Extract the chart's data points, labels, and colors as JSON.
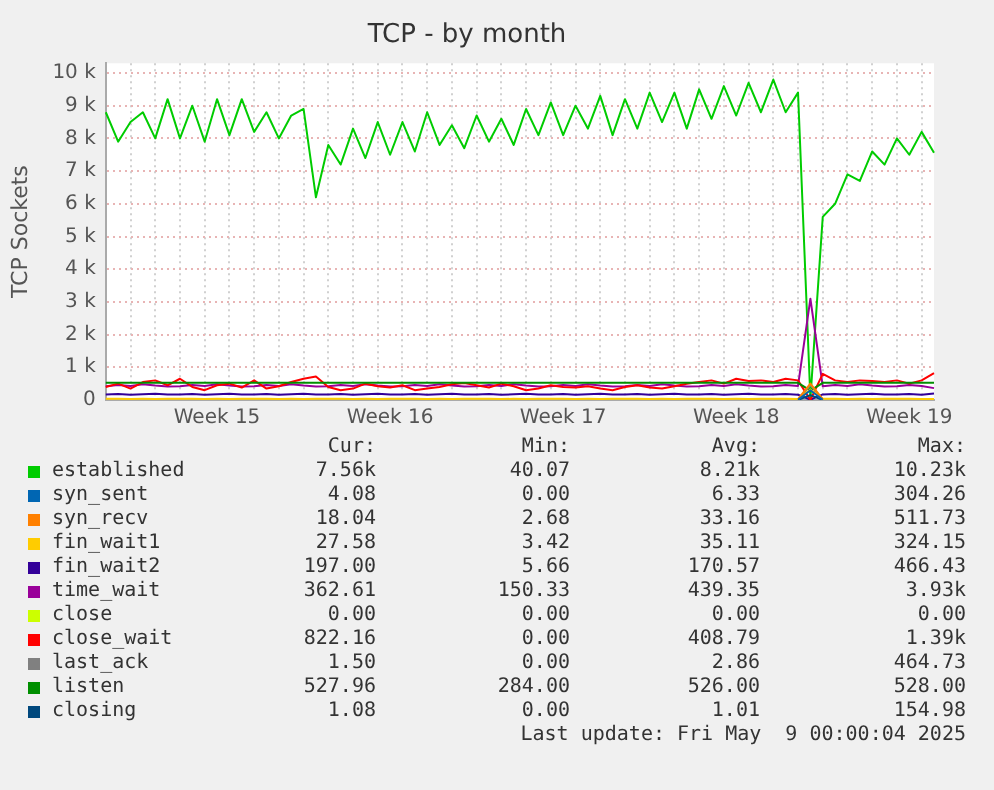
{
  "chart_data": {
    "type": "line",
    "title": "TCP - by month",
    "ylabel": "TCP Sockets",
    "categories": [
      null,
      null,
      null,
      null,
      null,
      null,
      null,
      null,
      null,
      "Week 15",
      null,
      null,
      null,
      null,
      null,
      null,
      null,
      null,
      null,
      null,
      null,
      null,
      null,
      "Week 16",
      null,
      null,
      null,
      null,
      null,
      null,
      null,
      null,
      null,
      null,
      null,
      null,
      null,
      "Week 17",
      null,
      null,
      null,
      null,
      null,
      null,
      null,
      null,
      null,
      null,
      null,
      null,
      null,
      "Week 18",
      null,
      null,
      null,
      null,
      null,
      null,
      null,
      null,
      null,
      null,
      null,
      null,
      null,
      "Week 19",
      null,
      null
    ],
    "ylim": [
      0,
      10300
    ],
    "yticks": [
      0,
      {
        "value": 1000,
        "label": "1 k"
      },
      {
        "value": 2000,
        "label": "2 k"
      },
      {
        "value": 3000,
        "label": "3 k"
      },
      {
        "value": 4000,
        "label": "4 k"
      },
      {
        "value": 5000,
        "label": "5 k"
      },
      {
        "value": 6000,
        "label": "6 k"
      },
      {
        "value": 7000,
        "label": "7 k"
      },
      {
        "value": 8000,
        "label": "8 k"
      },
      {
        "value": 9000,
        "label": "9 k"
      },
      {
        "value": 10000,
        "label": "10 k"
      }
    ],
    "grid": true,
    "legend": "bottom",
    "series": [
      {
        "name": "established",
        "color": "#00cc00",
        "values": [
          8800,
          7900,
          8500,
          8800,
          8000,
          9200,
          8000,
          9000,
          7900,
          9200,
          8100,
          9200,
          8200,
          8800,
          8000,
          8700,
          8900,
          6200,
          7800,
          7200,
          8300,
          7400,
          8500,
          7500,
          8500,
          7600,
          8800,
          7800,
          8400,
          7700,
          8700,
          7900,
          8600,
          7800,
          8900,
          8100,
          9100,
          8100,
          9000,
          8300,
          9300,
          8100,
          9200,
          8300,
          9400,
          8500,
          9400,
          8300,
          9500,
          8600,
          9600,
          8700,
          9700,
          8800,
          9800,
          8800,
          9400,
          40,
          5600,
          6000,
          6900,
          6700,
          7600,
          7200,
          8000,
          7500,
          8200,
          7560
        ]
      },
      {
        "name": "syn_sent",
        "color": "#0066b3",
        "values": [
          null,
          null,
          null,
          null,
          null,
          null,
          null,
          null,
          null,
          null,
          null,
          null,
          null,
          null,
          null,
          null,
          null,
          null,
          null,
          null,
          null,
          null,
          null,
          null,
          null,
          null,
          null,
          null,
          null,
          null,
          null,
          null,
          null,
          null,
          null,
          null,
          null,
          null,
          null,
          null,
          null,
          null,
          null,
          null,
          null,
          null,
          null,
          null,
          null,
          null,
          null,
          null,
          null,
          null,
          null,
          null,
          10,
          300,
          10,
          null,
          null,
          null,
          null,
          null,
          null,
          null,
          null,
          null
        ]
      },
      {
        "name": "syn_recv",
        "color": "#ff8000",
        "values": [
          null,
          null,
          null,
          null,
          null,
          null,
          null,
          null,
          null,
          null,
          null,
          null,
          null,
          null,
          null,
          null,
          null,
          null,
          null,
          null,
          null,
          null,
          null,
          null,
          null,
          null,
          null,
          null,
          null,
          null,
          null,
          null,
          null,
          null,
          null,
          null,
          null,
          null,
          null,
          null,
          null,
          null,
          null,
          null,
          null,
          null,
          null,
          null,
          null,
          null,
          null,
          null,
          null,
          null,
          null,
          null,
          30,
          500,
          30,
          null,
          null,
          null,
          null,
          null,
          null,
          null,
          null,
          null
        ]
      },
      {
        "name": "fin_wait1",
        "color": "#ffcc00",
        "values": [
          35,
          38,
          32,
          36,
          34,
          40,
          35,
          38,
          32,
          36,
          34,
          40,
          35,
          38,
          32,
          36,
          34,
          40,
          35,
          38,
          32,
          36,
          34,
          40,
          35,
          38,
          32,
          36,
          34,
          40,
          35,
          38,
          32,
          36,
          34,
          40,
          35,
          38,
          32,
          36,
          34,
          40,
          35,
          38,
          32,
          36,
          34,
          40,
          35,
          38,
          32,
          36,
          34,
          40,
          35,
          38,
          32,
          320,
          35,
          38,
          32,
          36,
          34,
          40,
          35,
          38,
          32,
          28
        ]
      },
      {
        "name": "fin_wait2",
        "color": "#330099",
        "values": [
          170,
          180,
          160,
          175,
          190,
          165,
          170,
          180,
          160,
          175,
          190,
          165,
          170,
          180,
          160,
          175,
          190,
          165,
          170,
          180,
          160,
          175,
          190,
          165,
          170,
          180,
          160,
          175,
          190,
          165,
          170,
          180,
          160,
          175,
          190,
          165,
          170,
          180,
          160,
          175,
          190,
          165,
          170,
          180,
          160,
          175,
          190,
          165,
          170,
          180,
          160,
          175,
          190,
          165,
          170,
          180,
          160,
          10,
          170,
          180,
          160,
          175,
          190,
          165,
          170,
          180,
          160,
          197
        ]
      },
      {
        "name": "time_wait",
        "color": "#990099",
        "values": [
          420,
          460,
          430,
          480,
          440,
          410,
          420,
          460,
          430,
          480,
          440,
          410,
          420,
          460,
          430,
          480,
          440,
          410,
          420,
          460,
          430,
          480,
          440,
          410,
          420,
          460,
          430,
          480,
          440,
          410,
          420,
          460,
          430,
          480,
          440,
          410,
          420,
          460,
          430,
          480,
          440,
          410,
          420,
          460,
          430,
          480,
          440,
          410,
          420,
          460,
          430,
          480,
          440,
          410,
          420,
          460,
          430,
          3100,
          420,
          460,
          430,
          480,
          440,
          410,
          420,
          460,
          430,
          363
        ]
      },
      {
        "name": "close",
        "color": "#ccff00",
        "values": [
          null,
          null,
          null,
          null,
          null,
          null,
          null,
          null,
          null,
          null,
          null,
          null,
          null,
          null,
          null,
          null,
          null,
          null,
          null,
          null,
          null,
          null,
          null,
          null,
          null,
          null,
          null,
          null,
          null,
          null,
          null,
          null,
          null,
          null,
          null,
          null,
          null,
          null,
          null,
          null,
          null,
          null,
          null,
          null,
          null,
          null,
          null,
          null,
          null,
          null,
          null,
          null,
          null,
          null,
          null,
          null,
          null,
          null,
          null,
          null,
          null,
          null,
          null,
          null,
          null,
          null,
          null,
          null
        ]
      },
      {
        "name": "close_wait",
        "color": "#ff0000",
        "values": [
          400,
          500,
          350,
          550,
          600,
          450,
          650,
          400,
          300,
          450,
          500,
          380,
          600,
          350,
          420,
          550,
          650,
          720,
          400,
          300,
          350,
          500,
          420,
          380,
          450,
          300,
          350,
          400,
          480,
          520,
          450,
          380,
          500,
          420,
          300,
          350,
          450,
          400,
          380,
          420,
          350,
          300,
          400,
          450,
          380,
          350,
          420,
          500,
          550,
          600,
          500,
          650,
          580,
          600,
          550,
          650,
          600,
          0,
          800,
          600,
          550,
          600,
          580,
          550,
          600,
          500,
          600,
          822
        ]
      },
      {
        "name": "last_ack",
        "color": "#808080",
        "values": [
          null,
          null,
          null,
          null,
          null,
          null,
          null,
          null,
          null,
          null,
          null,
          null,
          null,
          null,
          null,
          null,
          null,
          null,
          null,
          null,
          null,
          null,
          null,
          null,
          null,
          null,
          null,
          null,
          null,
          null,
          null,
          null,
          null,
          null,
          null,
          null,
          null,
          null,
          null,
          null,
          null,
          null,
          null,
          null,
          null,
          null,
          null,
          null,
          null,
          null,
          null,
          null,
          null,
          null,
          null,
          null,
          0,
          460,
          0,
          null,
          null,
          null,
          null,
          null,
          null,
          null,
          null,
          null
        ]
      },
      {
        "name": "listen",
        "color": "#008f00",
        "values": [
          526,
          526,
          526,
          526,
          526,
          526,
          526,
          526,
          526,
          526,
          526,
          526,
          526,
          526,
          526,
          526,
          526,
          526,
          526,
          526,
          526,
          526,
          526,
          526,
          526,
          526,
          526,
          526,
          526,
          526,
          526,
          526,
          526,
          526,
          526,
          526,
          526,
          526,
          526,
          526,
          526,
          526,
          526,
          526,
          526,
          526,
          526,
          526,
          526,
          526,
          526,
          526,
          526,
          526,
          526,
          526,
          526,
          284,
          526,
          526,
          526,
          526,
          526,
          526,
          526,
          526,
          526,
          528
        ]
      },
      {
        "name": "closing",
        "color": "#00487d",
        "values": [
          null,
          null,
          null,
          null,
          null,
          null,
          null,
          null,
          null,
          null,
          null,
          null,
          null,
          null,
          null,
          null,
          null,
          null,
          null,
          null,
          null,
          null,
          null,
          null,
          null,
          null,
          null,
          null,
          null,
          null,
          null,
          null,
          null,
          null,
          null,
          null,
          null,
          null,
          null,
          null,
          null,
          null,
          null,
          null,
          null,
          null,
          null,
          null,
          null,
          null,
          null,
          null,
          null,
          null,
          null,
          null,
          0,
          150,
          0,
          null,
          null,
          null,
          null,
          null,
          null,
          null,
          null,
          null
        ]
      }
    ],
    "annotations": [
      "Cur:",
      "Min:",
      "Avg:",
      "Max:",
      "7.56k",
      "40.07",
      "8.21k",
      "10.23k",
      "4.08",
      "0.00",
      "6.33",
      "304.26",
      "18.04",
      "2.68",
      "33.16",
      "511.73",
      "27.58",
      "3.42",
      "35.11",
      "324.15",
      "197.00",
      "5.66",
      "170.57",
      "466.43",
      "362.61",
      "150.33",
      "439.35",
      "3.93k",
      "0.00",
      "0.00",
      "0.00",
      "0.00",
      "822.16",
      "0.00",
      "408.79",
      "1.39k",
      "1.50",
      "0.00",
      "2.86",
      "464.73",
      "527.96",
      "284.00",
      "526.00",
      "528.00",
      "1.08",
      "0.00",
      "1.01",
      "154.98",
      "Last update: Fri May  9 00:00:04 2025"
    ]
  }
}
